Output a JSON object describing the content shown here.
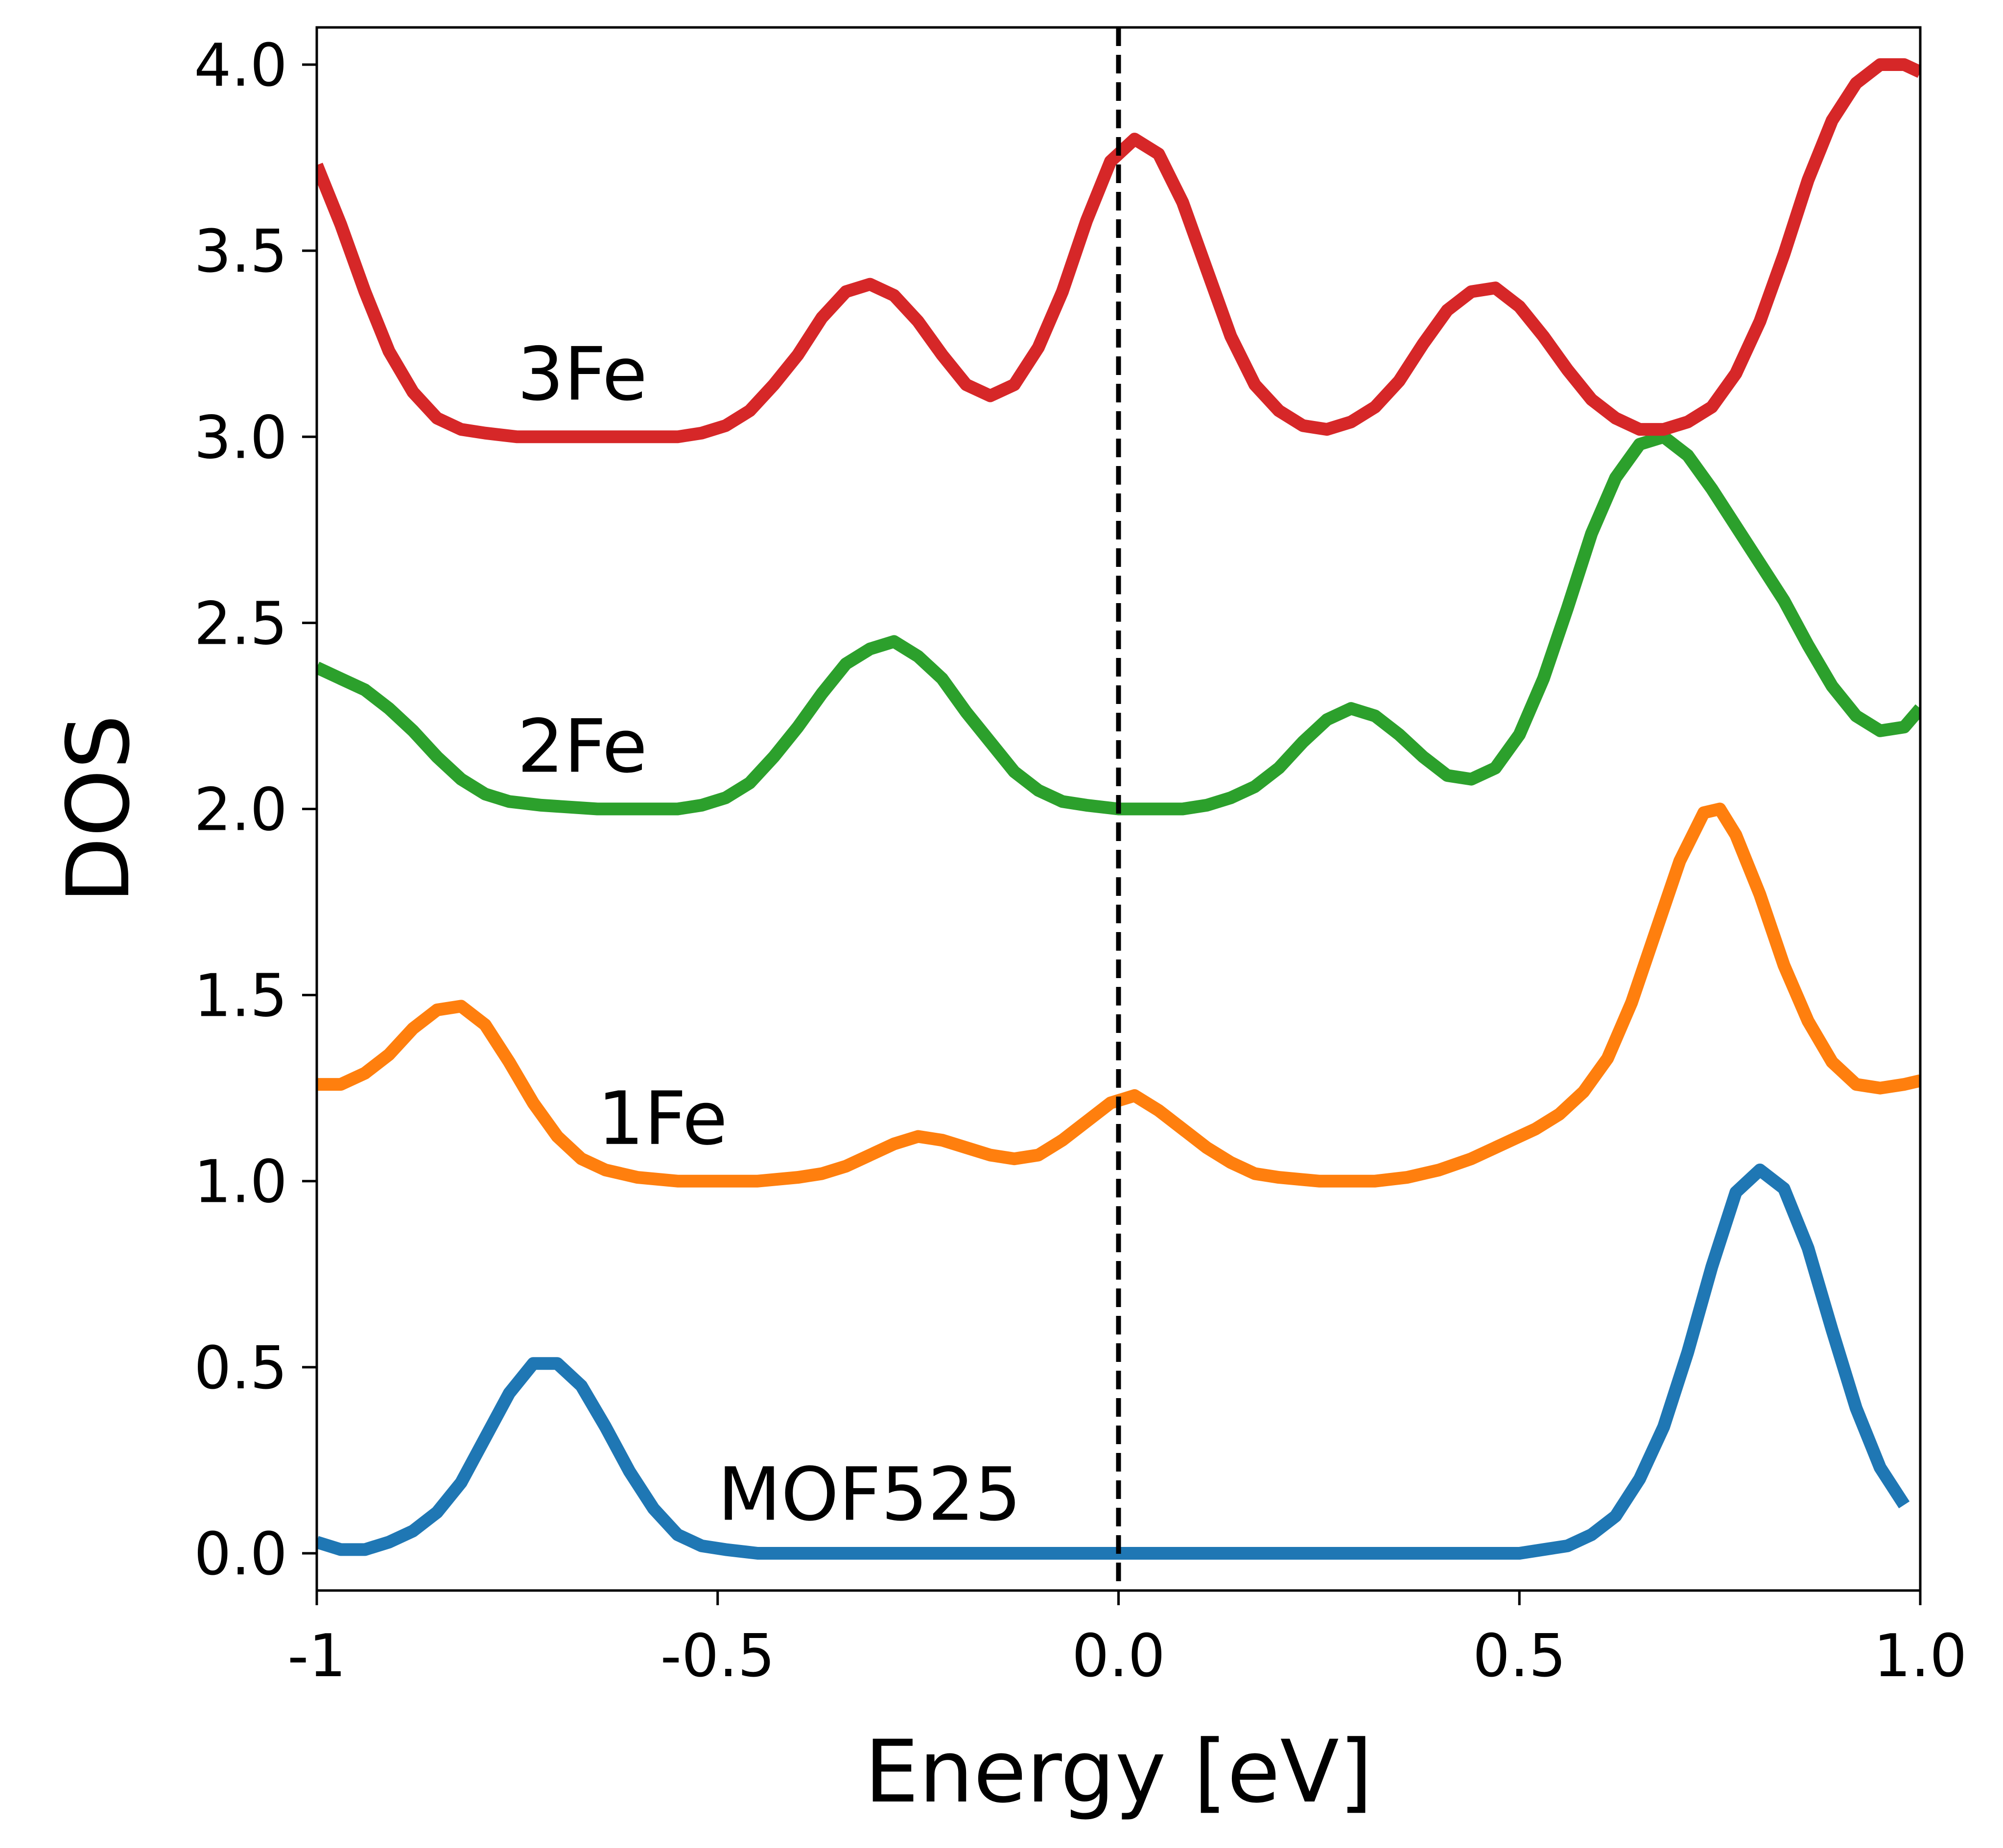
{
  "chart_data": {
    "type": "line",
    "title": "",
    "xlabel": "Energy [eV]",
    "ylabel": "DOS",
    "xlim": [
      -1.0,
      1.0
    ],
    "ylim": [
      -0.1,
      4.1
    ],
    "xticks": [
      {
        "value": -1.0,
        "label": "-1"
      },
      {
        "value": -0.5,
        "label": "-0.5"
      },
      {
        "value": 0.0,
        "label": "0.0"
      },
      {
        "value": 0.5,
        "label": "0.5"
      },
      {
        "value": 1.0,
        "label": "1.0"
      }
    ],
    "yticks": [
      {
        "value": 0.0,
        "label": "0.0"
      },
      {
        "value": 0.5,
        "label": "0.5"
      },
      {
        "value": 1.0,
        "label": "1.0"
      },
      {
        "value": 1.5,
        "label": "1.5"
      },
      {
        "value": 2.0,
        "label": "2.0"
      },
      {
        "value": 2.5,
        "label": "2.5"
      },
      {
        "value": 3.0,
        "label": "3.0"
      },
      {
        "value": 3.5,
        "label": "3.5"
      },
      {
        "value": 4.0,
        "label": "4.0"
      }
    ],
    "grid": false,
    "legend": "none",
    "fermi_line": {
      "x": 0.0,
      "style": "dashed",
      "color": "#000000"
    },
    "series": [
      {
        "name": "MOF525",
        "color": "#1f77b4",
        "label_pos": [
          -0.5,
          0.09
        ],
        "points": [
          [
            -1.0,
            0.03
          ],
          [
            -0.97,
            0.01
          ],
          [
            -0.94,
            0.01
          ],
          [
            -0.91,
            0.03
          ],
          [
            -0.88,
            0.06
          ],
          [
            -0.85,
            0.11
          ],
          [
            -0.82,
            0.19
          ],
          [
            -0.79,
            0.31
          ],
          [
            -0.76,
            0.43
          ],
          [
            -0.73,
            0.51
          ],
          [
            -0.7,
            0.51
          ],
          [
            -0.67,
            0.45
          ],
          [
            -0.64,
            0.34
          ],
          [
            -0.61,
            0.22
          ],
          [
            -0.58,
            0.12
          ],
          [
            -0.55,
            0.05
          ],
          [
            -0.52,
            0.02
          ],
          [
            -0.49,
            0.01
          ],
          [
            -0.45,
            0.0
          ],
          [
            -0.4,
            0.0
          ],
          [
            -0.2,
            0.0
          ],
          [
            0.0,
            0.0
          ],
          [
            0.2,
            0.0
          ],
          [
            0.4,
            0.0
          ],
          [
            0.5,
            0.0
          ],
          [
            0.53,
            0.01
          ],
          [
            0.56,
            0.02
          ],
          [
            0.59,
            0.05
          ],
          [
            0.62,
            0.1
          ],
          [
            0.65,
            0.2
          ],
          [
            0.68,
            0.34
          ],
          [
            0.71,
            0.54
          ],
          [
            0.74,
            0.77
          ],
          [
            0.77,
            0.97
          ],
          [
            0.8,
            1.03
          ],
          [
            0.83,
            0.98
          ],
          [
            0.86,
            0.82
          ],
          [
            0.89,
            0.6
          ],
          [
            0.92,
            0.39
          ],
          [
            0.95,
            0.23
          ],
          [
            0.98,
            0.13
          ]
        ]
      },
      {
        "name": "1Fe",
        "color": "#ff7f0e",
        "label_pos": [
          -0.65,
          1.1
        ],
        "points": [
          [
            -1.0,
            1.26
          ],
          [
            -0.97,
            1.26
          ],
          [
            -0.94,
            1.29
          ],
          [
            -0.91,
            1.34
          ],
          [
            -0.88,
            1.41
          ],
          [
            -0.85,
            1.46
          ],
          [
            -0.82,
            1.47
          ],
          [
            -0.79,
            1.42
          ],
          [
            -0.76,
            1.32
          ],
          [
            -0.73,
            1.21
          ],
          [
            -0.7,
            1.12
          ],
          [
            -0.67,
            1.06
          ],
          [
            -0.64,
            1.03
          ],
          [
            -0.6,
            1.01
          ],
          [
            -0.55,
            1.0
          ],
          [
            -0.45,
            1.0
          ],
          [
            -0.4,
            1.01
          ],
          [
            -0.37,
            1.02
          ],
          [
            -0.34,
            1.04
          ],
          [
            -0.31,
            1.07
          ],
          [
            -0.28,
            1.1
          ],
          [
            -0.25,
            1.12
          ],
          [
            -0.22,
            1.11
          ],
          [
            -0.19,
            1.09
          ],
          [
            -0.16,
            1.07
          ],
          [
            -0.13,
            1.06
          ],
          [
            -0.1,
            1.07
          ],
          [
            -0.07,
            1.11
          ],
          [
            -0.04,
            1.16
          ],
          [
            -0.01,
            1.21
          ],
          [
            0.02,
            1.23
          ],
          [
            0.05,
            1.19
          ],
          [
            0.08,
            1.14
          ],
          [
            0.11,
            1.09
          ],
          [
            0.14,
            1.05
          ],
          [
            0.17,
            1.02
          ],
          [
            0.2,
            1.01
          ],
          [
            0.25,
            1.0
          ],
          [
            0.32,
            1.0
          ],
          [
            0.36,
            1.01
          ],
          [
            0.4,
            1.03
          ],
          [
            0.44,
            1.06
          ],
          [
            0.48,
            1.1
          ],
          [
            0.52,
            1.14
          ],
          [
            0.55,
            1.18
          ],
          [
            0.58,
            1.24
          ],
          [
            0.61,
            1.33
          ],
          [
            0.64,
            1.48
          ],
          [
            0.67,
            1.67
          ],
          [
            0.7,
            1.86
          ],
          [
            0.73,
            1.99
          ],
          [
            0.75,
            2.0
          ],
          [
            0.77,
            1.93
          ],
          [
            0.8,
            1.77
          ],
          [
            0.83,
            1.58
          ],
          [
            0.86,
            1.43
          ],
          [
            0.89,
            1.32
          ],
          [
            0.92,
            1.26
          ],
          [
            0.95,
            1.25
          ],
          [
            0.98,
            1.26
          ],
          [
            1.0,
            1.27
          ]
        ]
      },
      {
        "name": "2Fe",
        "color": "#2ca02c",
        "label_pos": [
          -0.75,
          2.1
        ],
        "points": [
          [
            -1.0,
            2.38
          ],
          [
            -0.97,
            2.35
          ],
          [
            -0.94,
            2.32
          ],
          [
            -0.91,
            2.27
          ],
          [
            -0.88,
            2.21
          ],
          [
            -0.85,
            2.14
          ],
          [
            -0.82,
            2.08
          ],
          [
            -0.79,
            2.04
          ],
          [
            -0.76,
            2.02
          ],
          [
            -0.72,
            2.01
          ],
          [
            -0.65,
            2.0
          ],
          [
            -0.55,
            2.0
          ],
          [
            -0.52,
            2.01
          ],
          [
            -0.49,
            2.03
          ],
          [
            -0.46,
            2.07
          ],
          [
            -0.43,
            2.14
          ],
          [
            -0.4,
            2.22
          ],
          [
            -0.37,
            2.31
          ],
          [
            -0.34,
            2.39
          ],
          [
            -0.31,
            2.43
          ],
          [
            -0.28,
            2.45
          ],
          [
            -0.25,
            2.41
          ],
          [
            -0.22,
            2.35
          ],
          [
            -0.19,
            2.26
          ],
          [
            -0.16,
            2.18
          ],
          [
            -0.13,
            2.1
          ],
          [
            -0.1,
            2.05
          ],
          [
            -0.07,
            2.02
          ],
          [
            -0.04,
            2.01
          ],
          [
            0.0,
            2.0
          ],
          [
            0.08,
            2.0
          ],
          [
            0.11,
            2.01
          ],
          [
            0.14,
            2.03
          ],
          [
            0.17,
            2.06
          ],
          [
            0.2,
            2.11
          ],
          [
            0.23,
            2.18
          ],
          [
            0.26,
            2.24
          ],
          [
            0.29,
            2.27
          ],
          [
            0.32,
            2.25
          ],
          [
            0.35,
            2.2
          ],
          [
            0.38,
            2.14
          ],
          [
            0.41,
            2.09
          ],
          [
            0.44,
            2.08
          ],
          [
            0.47,
            2.11
          ],
          [
            0.5,
            2.2
          ],
          [
            0.53,
            2.35
          ],
          [
            0.56,
            2.54
          ],
          [
            0.59,
            2.74
          ],
          [
            0.62,
            2.89
          ],
          [
            0.65,
            2.98
          ],
          [
            0.68,
            3.0
          ],
          [
            0.71,
            2.95
          ],
          [
            0.74,
            2.86
          ],
          [
            0.77,
            2.76
          ],
          [
            0.8,
            2.66
          ],
          [
            0.83,
            2.56
          ],
          [
            0.86,
            2.44
          ],
          [
            0.89,
            2.33
          ],
          [
            0.92,
            2.25
          ],
          [
            0.95,
            2.21
          ],
          [
            0.98,
            2.22
          ],
          [
            1.0,
            2.27
          ]
        ]
      },
      {
        "name": "3Fe",
        "color": "#d62728",
        "label_pos": [
          -0.75,
          3.1
        ],
        "points": [
          [
            -1.0,
            3.73
          ],
          [
            -0.97,
            3.57
          ],
          [
            -0.94,
            3.39
          ],
          [
            -0.91,
            3.23
          ],
          [
            -0.88,
            3.12
          ],
          [
            -0.85,
            3.05
          ],
          [
            -0.82,
            3.02
          ],
          [
            -0.79,
            3.01
          ],
          [
            -0.75,
            3.0
          ],
          [
            -0.55,
            3.0
          ],
          [
            -0.52,
            3.01
          ],
          [
            -0.49,
            3.03
          ],
          [
            -0.46,
            3.07
          ],
          [
            -0.43,
            3.14
          ],
          [
            -0.4,
            3.22
          ],
          [
            -0.37,
            3.32
          ],
          [
            -0.34,
            3.39
          ],
          [
            -0.31,
            3.41
          ],
          [
            -0.28,
            3.38
          ],
          [
            -0.25,
            3.31
          ],
          [
            -0.22,
            3.22
          ],
          [
            -0.19,
            3.14
          ],
          [
            -0.16,
            3.11
          ],
          [
            -0.13,
            3.14
          ],
          [
            -0.1,
            3.24
          ],
          [
            -0.07,
            3.39
          ],
          [
            -0.04,
            3.58
          ],
          [
            -0.01,
            3.74
          ],
          [
            0.02,
            3.8
          ],
          [
            0.05,
            3.76
          ],
          [
            0.08,
            3.63
          ],
          [
            0.11,
            3.45
          ],
          [
            0.14,
            3.27
          ],
          [
            0.17,
            3.14
          ],
          [
            0.2,
            3.07
          ],
          [
            0.23,
            3.03
          ],
          [
            0.26,
            3.02
          ],
          [
            0.29,
            3.04
          ],
          [
            0.32,
            3.08
          ],
          [
            0.35,
            3.15
          ],
          [
            0.38,
            3.25
          ],
          [
            0.41,
            3.34
          ],
          [
            0.44,
            3.39
          ],
          [
            0.47,
            3.4
          ],
          [
            0.5,
            3.35
          ],
          [
            0.53,
            3.27
          ],
          [
            0.56,
            3.18
          ],
          [
            0.59,
            3.1
          ],
          [
            0.62,
            3.05
          ],
          [
            0.65,
            3.02
          ],
          [
            0.68,
            3.02
          ],
          [
            0.71,
            3.04
          ],
          [
            0.74,
            3.08
          ],
          [
            0.77,
            3.17
          ],
          [
            0.8,
            3.31
          ],
          [
            0.83,
            3.49
          ],
          [
            0.86,
            3.69
          ],
          [
            0.89,
            3.85
          ],
          [
            0.92,
            3.95
          ],
          [
            0.95,
            4.0
          ],
          [
            0.98,
            4.0
          ],
          [
            1.0,
            3.98
          ]
        ]
      }
    ]
  }
}
